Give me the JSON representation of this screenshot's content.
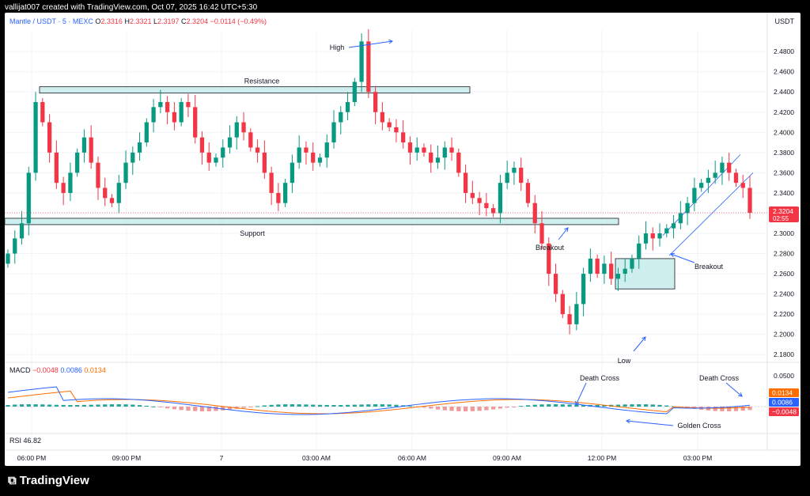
{
  "header": {
    "credit": "vallijat007 created with TradingView.com, Oct 07, 2025 16:42 UTC+5:30"
  },
  "legend": {
    "symbol": "Mantle / USDT · 5 · MEXC",
    "open_label": "O",
    "open": "2.3316",
    "high_label": "H",
    "high": "2.3321",
    "low_label": "L",
    "low": "2.3197",
    "close_label": "C",
    "close": "2.3204",
    "change": "−0.0114 (−0.49%)"
  },
  "currency": "USDT",
  "macd_legend": {
    "label": "MACD",
    "v1": "−0.0048",
    "v2": "0.0086",
    "v3": "0.0134"
  },
  "rsi_legend": {
    "label": "RSI",
    "value": "46.82"
  },
  "brand": {
    "logo_icon": "tradingview-logo-icon",
    "name": "TradingView"
  },
  "colors": {
    "up": "#089981",
    "down": "#f23645",
    "annot": "#2962ff",
    "zone": "#cfefef",
    "macd": "#2962ff",
    "signal": "#ff6d00"
  },
  "chart_data": {
    "type": "candlestick",
    "price_axis": {
      "ticks": [
        "2.4800",
        "2.4600",
        "2.4400",
        "2.4200",
        "2.4000",
        "2.3800",
        "2.3600",
        "2.3400",
        "2.3200",
        "2.3000",
        "2.2800",
        "2.2600",
        "2.2400",
        "2.2200",
        "2.2000",
        "2.1800"
      ],
      "range": [
        2.17,
        2.495
      ],
      "last_price": "2.3204",
      "countdown": "02:55"
    },
    "time_axis": [
      "06:00 PM",
      "09:00 PM",
      "7",
      "03:00 AM",
      "06:00 AM",
      "09:00 AM",
      "12:00 PM",
      "03:00 PM"
    ],
    "macd_axis": {
      "ticks": [
        "0.0500"
      ],
      "labels": [
        "0.0134",
        "0.0086",
        "−0.0048"
      ]
    },
    "series_close": [
      2.28,
      2.295,
      2.31,
      2.36,
      2.43,
      2.41,
      2.38,
      2.35,
      2.34,
      2.36,
      2.38,
      2.395,
      2.37,
      2.345,
      2.335,
      2.33,
      2.35,
      2.37,
      2.38,
      2.39,
      2.41,
      2.425,
      2.43,
      2.42,
      2.41,
      2.43,
      2.425,
      2.395,
      2.38,
      2.37,
      2.375,
      2.385,
      2.395,
      2.41,
      2.4,
      2.385,
      2.38,
      2.36,
      2.34,
      2.33,
      2.35,
      2.37,
      2.385,
      2.38,
      2.37,
      2.375,
      2.39,
      2.41,
      2.42,
      2.43,
      2.45,
      2.49,
      2.44,
      2.42,
      2.41,
      2.405,
      2.4,
      2.39,
      2.38,
      2.385,
      2.38,
      2.37,
      2.375,
      2.385,
      2.38,
      2.36,
      2.34,
      2.335,
      2.33,
      2.325,
      2.32,
      2.35,
      2.36,
      2.365,
      2.35,
      2.33,
      2.31,
      2.29,
      2.26,
      2.24,
      2.22,
      2.21,
      2.23,
      2.26,
      2.275,
      2.26,
      2.27,
      2.255,
      2.26,
      2.265,
      2.275,
      2.29,
      2.3,
      2.295,
      2.3,
      2.305,
      2.31,
      2.32,
      2.33,
      2.345,
      2.35,
      2.355,
      2.36,
      2.37,
      2.36,
      2.35,
      2.345,
      2.3204
    ],
    "zones": [
      {
        "name": "Resistance",
        "price": 2.442
      },
      {
        "name": "Support",
        "price": 2.311
      },
      {
        "name": "consolidation-box",
        "top": 2.275,
        "bottom": 2.245
      }
    ],
    "annotations": [
      "High",
      "Resistance",
      "Support",
      "Breakout",
      "Low",
      "Breakout",
      "Death Cross",
      "Death Cross",
      "Golden Cross"
    ]
  }
}
